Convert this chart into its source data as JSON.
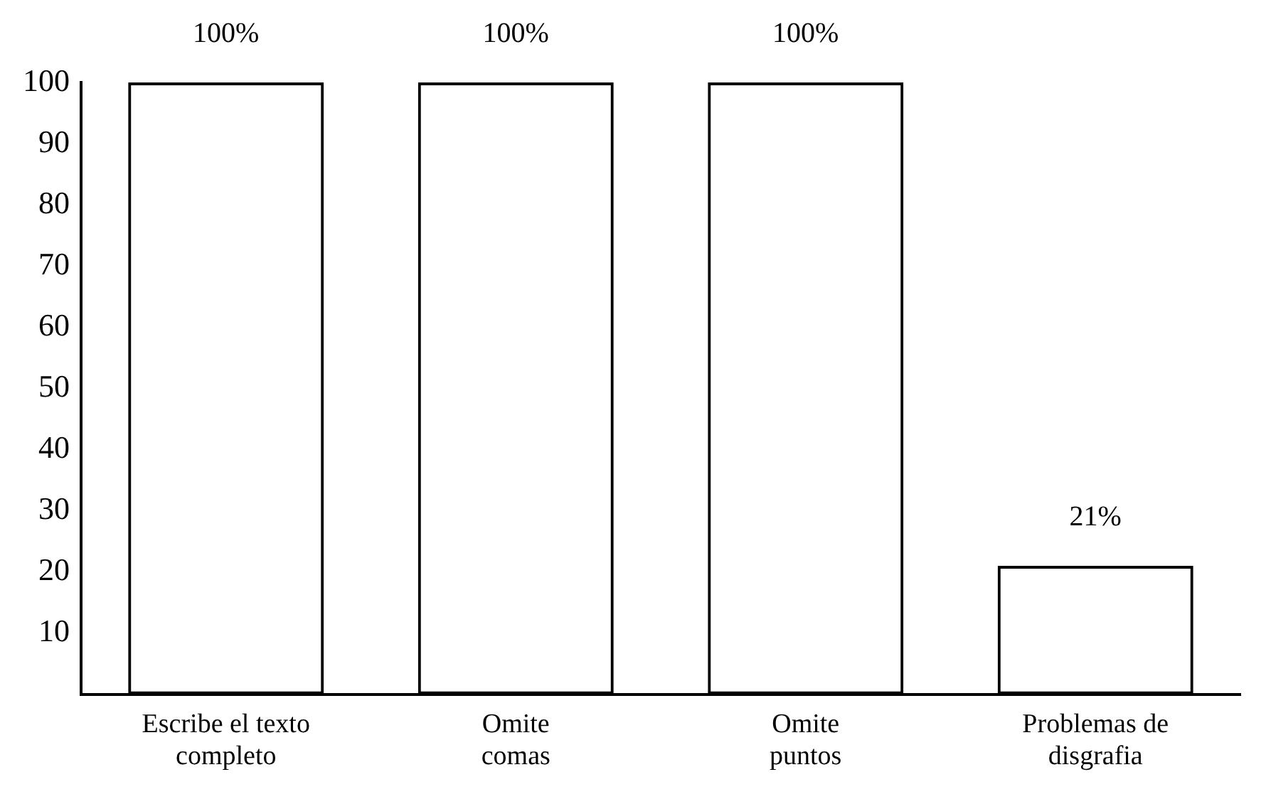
{
  "chart_data": {
    "type": "bar",
    "categories": [
      "Escribe el texto completo",
      "Omite comas",
      "Omite puntos",
      "Problemas de disgrafia"
    ],
    "values": [
      100,
      100,
      100,
      21
    ],
    "color": "#000000",
    "value_labels": [
      "100%",
      "100%",
      "100%",
      "21%"
    ],
    "ylim": [
      0,
      100
    ],
    "yticks": [
      10,
      20,
      30,
      40,
      50,
      60,
      70,
      80,
      90,
      100
    ],
    "grid": false,
    "legend": false
  }
}
